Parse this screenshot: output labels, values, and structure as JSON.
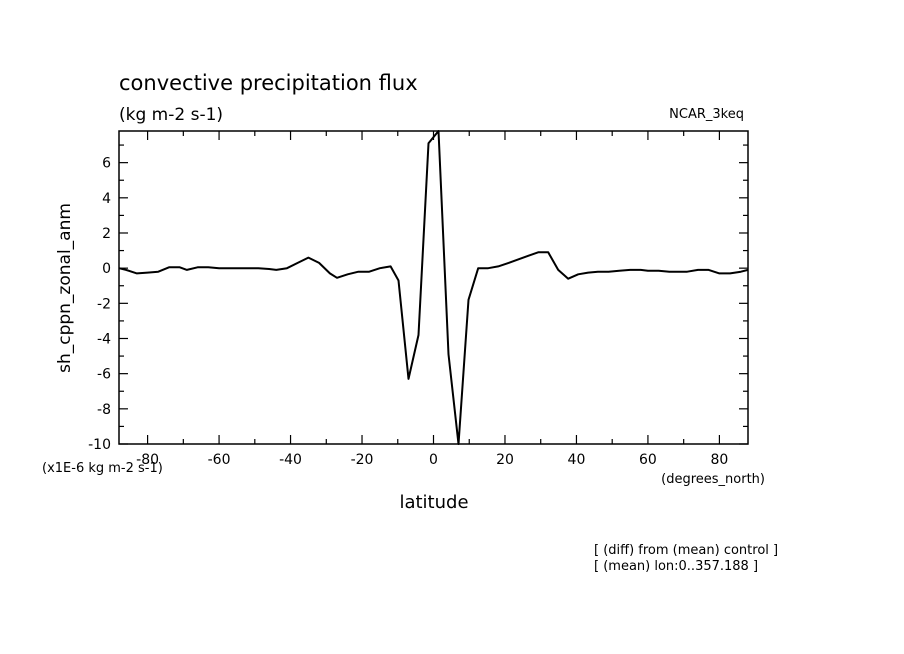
{
  "chart_data": {
    "type": "line",
    "title": "convective precipitation flux",
    "subtitle": "(kg m-2 s-1)",
    "model_label": "NCAR_3keq",
    "xlabel": "latitude",
    "x_units": "(degrees_north)",
    "ylabel": "sh_cppn_zonal_anm",
    "y_units": "(x1E-6 kg m-2 s-1)",
    "notes": [
      "[ (diff) from (mean) control ]",
      "[ (mean) lon:0..357.188 ]"
    ],
    "xlim": [
      -88,
      88
    ],
    "ylim": [
      -10,
      7.8
    ],
    "x_ticks": [
      -80,
      -60,
      -40,
      -20,
      0,
      20,
      40,
      60,
      80
    ],
    "y_ticks": [
      6,
      4,
      2,
      0,
      -2,
      -4,
      -6,
      -8,
      -10
    ],
    "grid": false,
    "series": [
      {
        "x": [
          -88,
          -86,
          -83,
          -80,
          -77,
          -74,
          -71,
          -69,
          -66,
          -63,
          -60,
          -58,
          -55,
          -52,
          -49,
          -46,
          -44,
          -41,
          -38,
          -35,
          -32,
          -29,
          -27,
          -24,
          -21,
          -18,
          -15,
          -12,
          -9.8,
          -7.0,
          -4.2,
          -1.4,
          1.4,
          4.2,
          7.0,
          9.8,
          12.5,
          15.3,
          18.1,
          21.0,
          23.7,
          26.5,
          29.3,
          32.1,
          34.9,
          37.7,
          40.5,
          43.3,
          46,
          49,
          52,
          55,
          58,
          60,
          63,
          66,
          69,
          71,
          74,
          77,
          80,
          83,
          86,
          88
        ],
        "values": [
          0.0,
          -0.1,
          -0.3,
          -0.25,
          -0.2,
          0.05,
          0.05,
          -0.1,
          0.05,
          0.05,
          0.0,
          0.0,
          0.0,
          0.0,
          0.0,
          -0.05,
          -0.1,
          0.0,
          0.3,
          0.6,
          0.3,
          -0.3,
          -0.55,
          -0.35,
          -0.2,
          -0.2,
          0.0,
          0.1,
          -0.7,
          -6.3,
          -3.8,
          7.1,
          7.8,
          -4.9,
          -10.0,
          -1.8,
          0.0,
          0.0,
          0.1,
          0.3,
          0.5,
          0.7,
          0.9,
          0.9,
          -0.1,
          -0.6,
          -0.35,
          -0.25,
          -0.2,
          -0.2,
          -0.15,
          -0.1,
          -0.1,
          -0.15,
          -0.15,
          -0.2,
          -0.2,
          -0.2,
          -0.1,
          -0.1,
          -0.3,
          -0.3,
          -0.2,
          -0.1
        ]
      }
    ]
  }
}
